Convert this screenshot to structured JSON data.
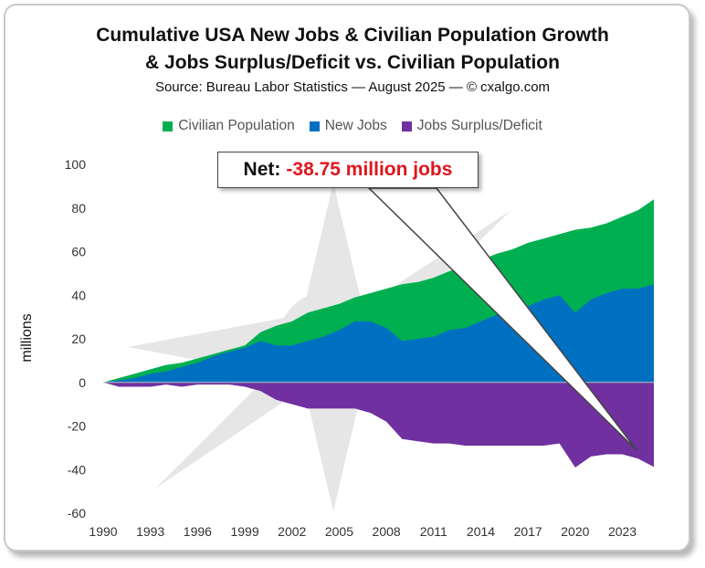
{
  "title_line1": "Cumulative USA New Jobs & Civilian Population Growth",
  "title_line2": "& Jobs Surplus/Deficit vs. Civilian Population",
  "subtitle": "Source: Bureau Labor Statistics — August 2025 — © cxalgo.com",
  "legend": [
    {
      "label": "Civilian Population",
      "color": "#00b050"
    },
    {
      "label": "New Jobs",
      "color": "#0070c0"
    },
    {
      "label": "Jobs Surplus/Deficit",
      "color": "#7030a0"
    }
  ],
  "callout": {
    "prefix": "Net:",
    "value": "-38.75 million jobs"
  },
  "chart_data": {
    "type": "area",
    "ylabel": "millions",
    "ylim": [
      -60,
      100
    ],
    "xlim": [
      1990,
      2025
    ],
    "yticks": [
      100,
      80,
      60,
      40,
      20,
      0,
      -20,
      -40,
      -60
    ],
    "xticks": [
      1990,
      1993,
      1996,
      1999,
      2002,
      2005,
      2008,
      2011,
      2014,
      2017,
      2020,
      2023
    ],
    "x": [
      1990,
      1991,
      1992,
      1993,
      1994,
      1995,
      1996,
      1997,
      1998,
      1999,
      2000,
      2001,
      2002,
      2003,
      2004,
      2005,
      2006,
      2007,
      2008,
      2009,
      2010,
      2011,
      2012,
      2013,
      2014,
      2015,
      2016,
      2017,
      2018,
      2019,
      2020,
      2021,
      2022,
      2023,
      2024,
      2025
    ],
    "series": [
      {
        "name": "Civilian Population",
        "color": "#00b050",
        "values": [
          0,
          2,
          4,
          6,
          8,
          9,
          11,
          13,
          15,
          17,
          23,
          26,
          28,
          32,
          34,
          36,
          39,
          41,
          43,
          45,
          46,
          48,
          51,
          54,
          56,
          59,
          61,
          64,
          66,
          68,
          70,
          71,
          73,
          76,
          79,
          84
        ]
      },
      {
        "name": "New Jobs",
        "color": "#0070c0",
        "values": [
          0,
          1,
          2,
          4,
          5,
          7,
          9,
          12,
          14,
          16,
          19,
          17,
          17,
          19,
          21,
          24,
          28,
          28,
          25,
          19,
          20,
          21,
          24,
          25,
          28,
          31,
          33,
          35,
          38,
          40,
          32,
          38,
          41,
          43,
          43,
          45
        ]
      },
      {
        "name": "Jobs Surplus/Deficit",
        "color": "#7030a0",
        "values": [
          0,
          -2,
          -2,
          -2,
          -1,
          -2,
          -1,
          -1,
          -1,
          -2,
          -4,
          -8,
          -10,
          -12,
          -12,
          -12,
          -12,
          -14,
          -18,
          -26,
          -27,
          -28,
          -28,
          -29,
          -29,
          -29,
          -29,
          -29,
          -29,
          -28,
          -39,
          -34,
          -33,
          -33,
          -35,
          -38.75
        ]
      }
    ]
  }
}
